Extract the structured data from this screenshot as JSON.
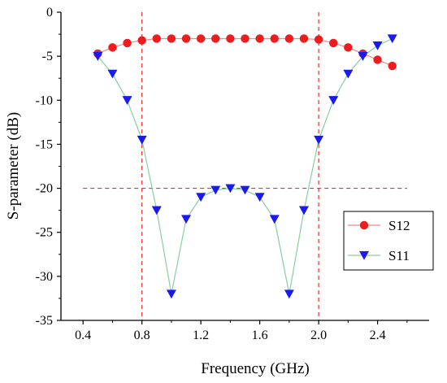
{
  "chart_data": {
    "type": "line",
    "xlabel": "Frequency (GHz)",
    "ylabel": "S-parameter (dB)",
    "xlim": [
      0.25,
      2.75
    ],
    "ylim": [
      -35,
      0
    ],
    "xticks": [
      0.4,
      0.8,
      1.2,
      1.6,
      2.0,
      2.4
    ],
    "xtick_labels": [
      "0.4",
      "0.8",
      "1.2",
      "1.6",
      "2.0",
      "2.4"
    ],
    "yticks": [
      0,
      -5,
      -10,
      -15,
      -20,
      -25,
      -30,
      -35
    ],
    "ytick_labels": [
      "0",
      "-5",
      "-10",
      "-15",
      "-20",
      "-25",
      "-30",
      "-35"
    ],
    "grid": false,
    "legend_position": "bottom-right",
    "reference_lines": [
      {
        "orientation": "vertical",
        "value": 0.8,
        "color": "#e8312b",
        "style": "dashed"
      },
      {
        "orientation": "vertical",
        "value": 2.0,
        "color": "#e8312b",
        "style": "dashed"
      },
      {
        "orientation": "horizontal",
        "value": -20,
        "color": "#e8312b",
        "style": "dashed"
      }
    ],
    "series": [
      {
        "name": "S12",
        "marker": "circle",
        "marker_color": "#ee1c1c",
        "line_color": "#f08a84",
        "x": [
          0.5,
          0.6,
          0.7,
          0.8,
          0.9,
          1.0,
          1.1,
          1.2,
          1.3,
          1.4,
          1.5,
          1.6,
          1.7,
          1.8,
          1.9,
          2.0,
          2.1,
          2.2,
          2.3,
          2.4,
          2.5
        ],
        "y": [
          -4.7,
          -4.0,
          -3.5,
          -3.2,
          -3.0,
          -3.0,
          -3.0,
          -3.0,
          -3.0,
          -3.0,
          -3.0,
          -3.0,
          -3.0,
          -3.0,
          -3.0,
          -3.1,
          -3.5,
          -4.0,
          -4.7,
          -5.4,
          -6.1
        ]
      },
      {
        "name": "S11",
        "marker": "triangle-down",
        "marker_color": "#1a1aee",
        "line_color": "#86cfa0",
        "x": [
          0.5,
          0.6,
          0.7,
          0.8,
          0.9,
          1.0,
          1.1,
          1.2,
          1.3,
          1.4,
          1.5,
          1.6,
          1.7,
          1.8,
          1.9,
          2.0,
          2.1,
          2.2,
          2.3,
          2.4,
          2.5
        ],
        "y": [
          -5.0,
          -7.0,
          -10.0,
          -14.5,
          -22.5,
          -32.0,
          -23.5,
          -21.0,
          -20.2,
          -20.0,
          -20.2,
          -21.0,
          -23.5,
          -32.0,
          -22.5,
          -14.5,
          -10.0,
          -7.0,
          -5.0,
          -3.8,
          -3.0
        ]
      }
    ]
  }
}
